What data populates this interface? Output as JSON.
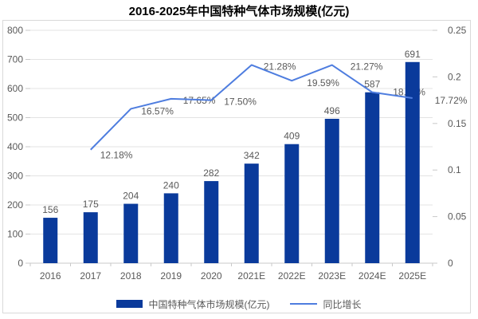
{
  "title": "2016-2025年中国特种气体市场规模(亿元)",
  "legend": {
    "bar_label": "中国特种气体市场规模(亿元)",
    "line_label": "同比增长"
  },
  "colors": {
    "bar": "#0A3A9B",
    "line": "#4E7DDF",
    "grid": "#E3E3E3",
    "axis": "#C9C9C9",
    "label": "#595959",
    "title": "#000000",
    "border": "#D9D9D9"
  },
  "chart_data": {
    "type": "combo",
    "title": "2016-2025年中国特种气体市场规模(亿元)",
    "categories": [
      "2016",
      "2017",
      "2018",
      "2019",
      "2020",
      "2021E",
      "2022E",
      "2023E",
      "2024E",
      "2025E"
    ],
    "series": [
      {
        "name": "中国特种气体市场规模(亿元)",
        "type": "bar",
        "axis": "left",
        "values": [
          156,
          175,
          204,
          240,
          282,
          342,
          409,
          496,
          587,
          691
        ],
        "labels": [
          "156",
          "175",
          "204",
          "240",
          "282",
          "342",
          "409",
          "496",
          "587",
          "691"
        ]
      },
      {
        "name": "同比增长",
        "type": "line",
        "axis": "right",
        "values_pct": [
          null,
          12.18,
          16.57,
          17.65,
          17.5,
          21.28,
          19.59,
          21.27,
          18.35,
          17.72
        ],
        "labels": [
          null,
          "12.18%",
          "16.57%",
          "17.65%",
          "17.50%",
          "21.28%",
          "19.59%",
          "21.27%",
          "18.35%",
          "17.72%"
        ]
      }
    ],
    "left_axis": {
      "min": 0,
      "max": 800,
      "tick_labels": [
        "0",
        "100",
        "200",
        "300",
        "400",
        "500",
        "600",
        "700",
        "800"
      ]
    },
    "right_axis": {
      "min": 0,
      "max": 0.25,
      "tick_labels": [
        "0",
        "0.05",
        "0.1",
        "0.15",
        "0.2",
        "0.25"
      ]
    },
    "grid": true,
    "legend_position": "bottom"
  }
}
